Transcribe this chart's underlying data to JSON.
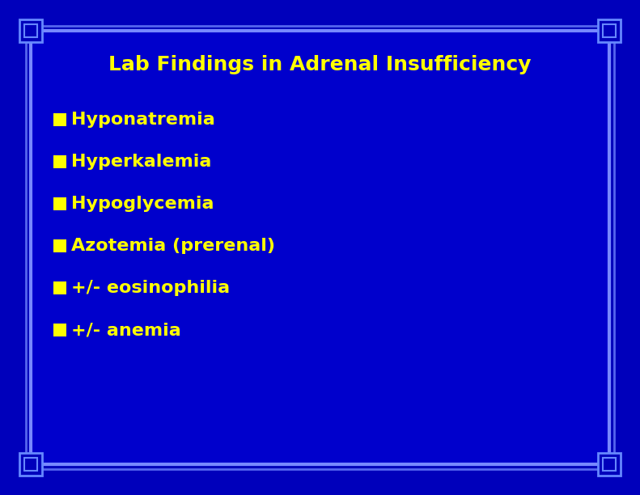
{
  "title": "Lab Findings in Adrenal Insufficiency",
  "title_color": "#FFFF00",
  "title_fontsize": 18,
  "bullet_items": [
    "Hyponatremia",
    "Hyperkalemia",
    "Hypoglycemia",
    "Azotemia (prerenal)",
    "+/- eosinophilia",
    "+/- anemia"
  ],
  "bullet_color": "#FFFF00",
  "bullet_fontsize": 16,
  "bullet_square_color": "#FFFF00",
  "background_outer": "#0000BB",
  "background_inner": "#0000CC",
  "border_line_color": "#5577FF",
  "corner_outer_color": "#4466EE",
  "fig_width": 7.91,
  "fig_height": 6.12,
  "dpi": 100
}
